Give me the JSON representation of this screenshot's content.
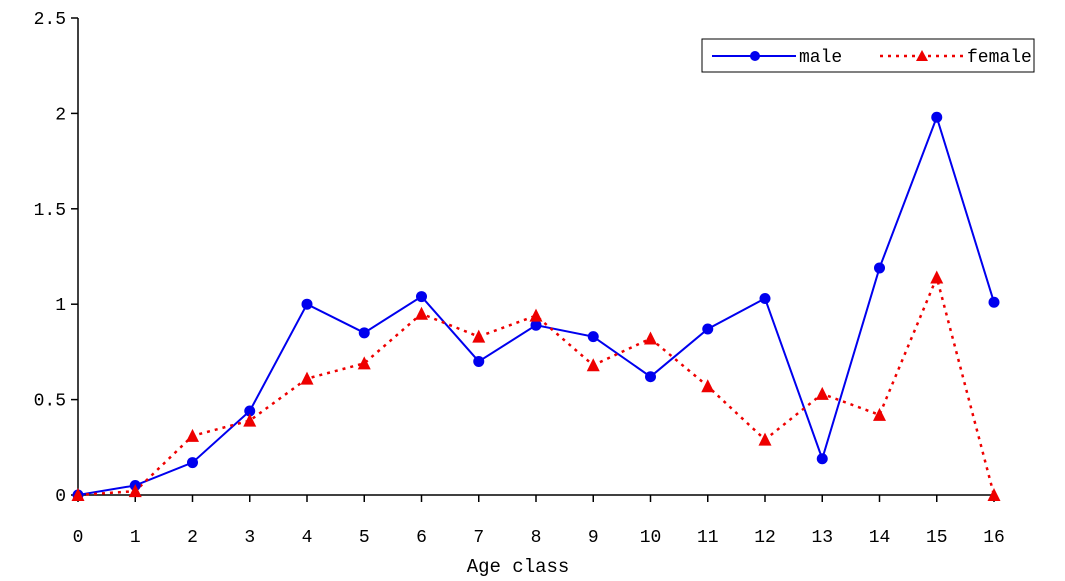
{
  "chart_data": {
    "type": "line",
    "title": "",
    "xlabel": "Age class",
    "ylabel": "",
    "xlim": [
      0,
      16
    ],
    "ylim": [
      0,
      2.5
    ],
    "x_ticks": [
      "0",
      "1",
      "2",
      "3",
      "4",
      "5",
      "6",
      "7",
      "8",
      "9",
      "10",
      "11",
      "12",
      "13",
      "14",
      "15",
      "16"
    ],
    "y_ticks": [
      "0",
      "0.5",
      "1",
      "1.5",
      "2",
      "2.5"
    ],
    "grid": false,
    "legend_position": "top-right",
    "x": [
      0,
      1,
      2,
      3,
      4,
      5,
      6,
      7,
      8,
      9,
      10,
      11,
      12,
      13,
      14,
      15,
      16
    ],
    "series": [
      {
        "name": "male",
        "color": "#0000ee",
        "line_style": "solid",
        "marker": "circle",
        "values": [
          0.0,
          0.05,
          0.17,
          0.44,
          1.0,
          0.85,
          1.04,
          0.7,
          0.89,
          0.83,
          0.62,
          0.87,
          1.03,
          0.19,
          1.19,
          1.98,
          1.01
        ]
      },
      {
        "name": "female",
        "color": "#ee0000",
        "line_style": "dotted",
        "marker": "triangle",
        "values": [
          0.0,
          0.02,
          0.31,
          0.39,
          0.61,
          0.69,
          0.95,
          0.83,
          0.94,
          0.68,
          0.82,
          0.57,
          0.29,
          0.53,
          0.42,
          1.14,
          0.0
        ]
      }
    ]
  }
}
